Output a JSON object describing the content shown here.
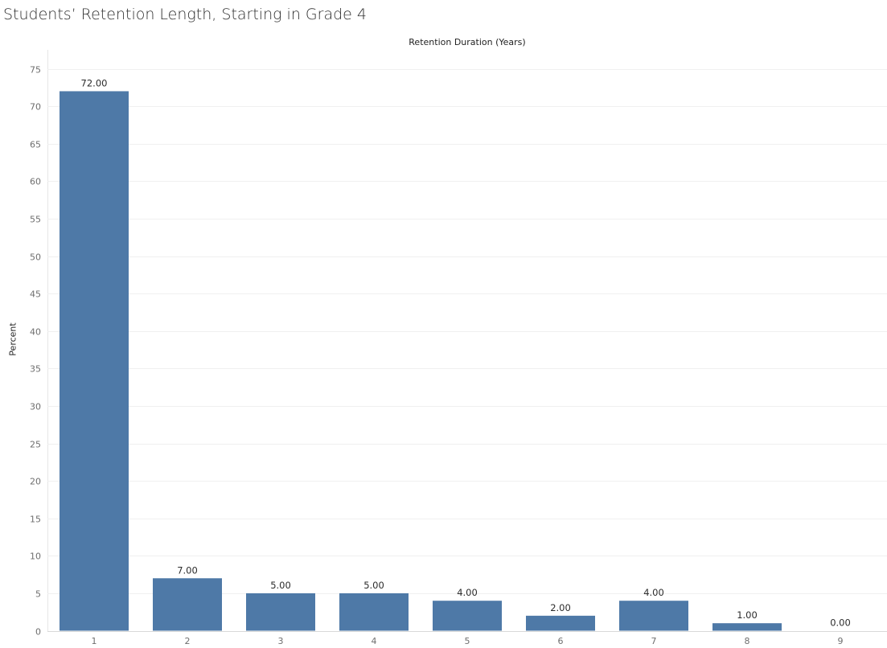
{
  "chart_data": {
    "type": "bar",
    "title": "Students’ Retention Length, Starting in Grade 4",
    "xlabel": "Retention Duration (Years)",
    "ylabel": "Percent",
    "categories": [
      "1",
      "2",
      "3",
      "4",
      "5",
      "6",
      "7",
      "8",
      "9"
    ],
    "values": [
      72,
      7,
      5,
      5,
      4,
      2,
      4,
      1,
      0
    ],
    "value_labels": [
      "72.00",
      "7.00",
      "5.00",
      "5.00",
      "4.00",
      "2.00",
      "4.00",
      "1.00",
      "0.00"
    ],
    "y_ticks": [
      "0",
      "5",
      "10",
      "15",
      "20",
      "25",
      "30",
      "35",
      "40",
      "45",
      "50",
      "55",
      "60",
      "65",
      "70",
      "75"
    ],
    "ylim": [
      0,
      75
    ],
    "grid": true,
    "bar_color": "#4e79a7",
    "gridline_color": "#f0f0f0"
  }
}
